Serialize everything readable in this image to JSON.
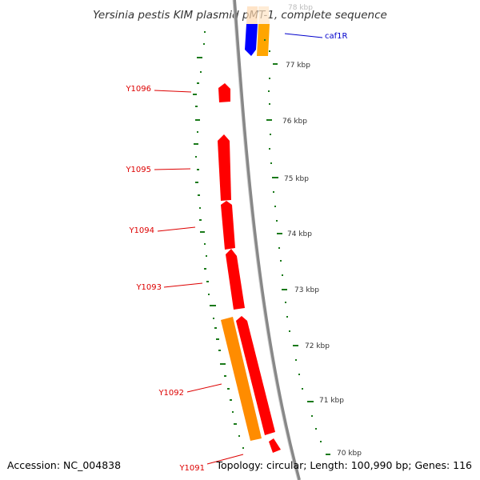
{
  "title": "Yersinia pestis KIM plasmid pMT-1, complete sequence",
  "footer": {
    "accession": "Accession: NC_004838",
    "summary": "Topology: circular; Length: 100,990 bp; Genes: 116"
  },
  "scale_labels": [
    "78 kbp",
    "77 kbp",
    "76 kbp",
    "75 kbp",
    "74 kbp",
    "73 kbp",
    "72 kbp",
    "71 kbp",
    "70 kbp"
  ],
  "genes": {
    "caf1R": {
      "label": "caf1R",
      "color": "#0000ff"
    },
    "Y1096": {
      "label": "Y1096",
      "color": "#ff0000"
    },
    "Y1095": {
      "label": "Y1095",
      "color": "#ff0000"
    },
    "Y1094": {
      "label": "Y1094",
      "color": "#ff0000"
    },
    "Y1093": {
      "label": "Y1093",
      "color": "#ff0000"
    },
    "Y1092": {
      "label": "Y1092",
      "color": "#ff8c00"
    },
    "Y1091": {
      "label": "Y1091",
      "color": "#ff0000"
    }
  },
  "colors": {
    "backbone": "#888888",
    "gc_ticks": "#1a7a1a",
    "orange_gene": "#ffa500",
    "red_gene": "#ff0000",
    "blue_gene": "#0000ff"
  }
}
